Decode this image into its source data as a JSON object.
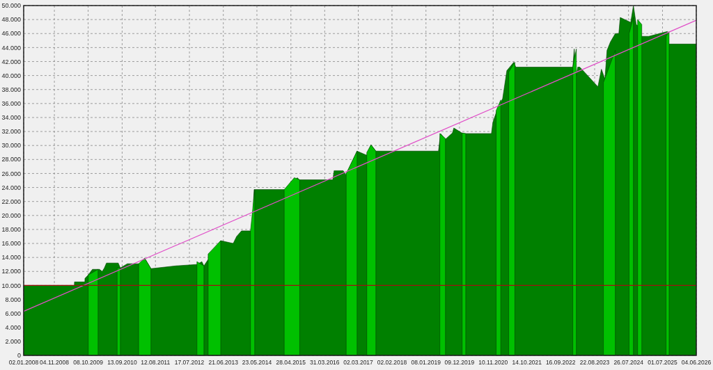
{
  "chart_data": {
    "type": "area",
    "xlim": [
      "2008-01-02",
      "2026-06-04"
    ],
    "xticks": [
      {
        "value": "2008-01-02",
        "label": "02.01.2008"
      },
      {
        "value": "2008-11-04",
        "label": "04.11.2008"
      },
      {
        "value": "2009-10-08",
        "label": "08.10.2009"
      },
      {
        "value": "2010-09-13",
        "label": "13.09.2010"
      },
      {
        "value": "2011-08-12",
        "label": "12.08.2011"
      },
      {
        "value": "2012-07-17",
        "label": "17.07.2012"
      },
      {
        "value": "2013-06-21",
        "label": "21.06.2013"
      },
      {
        "value": "2014-05-23",
        "label": "23.05.2014"
      },
      {
        "value": "2015-04-28",
        "label": "28.04.2015"
      },
      {
        "value": "2016-03-31",
        "label": "31.03.2016"
      },
      {
        "value": "2017-03-02",
        "label": "02.03.2017"
      },
      {
        "value": "2018-02-02",
        "label": "02.02.2018"
      },
      {
        "value": "2019-01-08",
        "label": "08.01.2019"
      },
      {
        "value": "2019-12-09",
        "label": "09.12.2019"
      },
      {
        "value": "2020-11-10",
        "label": "10.11.2020"
      },
      {
        "value": "2021-10-14",
        "label": "14.10.2021"
      },
      {
        "value": "2022-09-16",
        "label": "16.09.2022"
      },
      {
        "value": "2023-08-22",
        "label": "22.08.2023"
      },
      {
        "value": "2024-07-26",
        "label": "26.07.2024"
      },
      {
        "value": "2025-07-01",
        "label": "01.07.2025"
      },
      {
        "value": "2026-06-04",
        "label": "04.06.2026"
      }
    ],
    "ylim": [
      0,
      50000
    ],
    "yticks": [
      0,
      {
        "value": 2000,
        "label": "2.000"
      },
      {
        "value": 4000,
        "label": "4.000"
      },
      {
        "value": 6000,
        "label": "6.000"
      },
      {
        "value": 8000,
        "label": "8.000"
      },
      {
        "value": 10000,
        "label": "10.000"
      },
      {
        "value": 12000,
        "label": "12.000"
      },
      {
        "value": 14000,
        "label": "14.000"
      },
      {
        "value": 16000,
        "label": "16.000"
      },
      {
        "value": 18000,
        "label": "18.000"
      },
      {
        "value": 20000,
        "label": "20.000"
      },
      {
        "value": 22000,
        "label": "22.000"
      },
      {
        "value": 24000,
        "label": "24.000"
      },
      {
        "value": 26000,
        "label": "26.000"
      },
      {
        "value": 28000,
        "label": "28.000"
      },
      {
        "value": 30000,
        "label": "30.000"
      },
      {
        "value": 32000,
        "label": "32.000"
      },
      {
        "value": 34000,
        "label": "34.000"
      },
      {
        "value": 36000,
        "label": "36.000"
      },
      {
        "value": 38000,
        "label": "38.000"
      },
      {
        "value": 40000,
        "label": "40.000"
      },
      {
        "value": 42000,
        "label": "42.000"
      },
      {
        "value": 44000,
        "label": "44.000"
      },
      {
        "value": 46000,
        "label": "46.000"
      },
      {
        "value": 48000,
        "label": "48.000"
      },
      {
        "value": 50000,
        "label": "50.000"
      }
    ],
    "grid": true,
    "series": [
      {
        "color": "#008000",
        "x": [
          "2008-01-02",
          "2009-05-23",
          "2009-05-24",
          "2009-09-05",
          "2009-09-06",
          "2009-10-09",
          "2009-11-20",
          "2010-01-29",
          "2010-02-26",
          "2010-03-19",
          "2010-04-09",
          "2010-08-05",
          "2010-08-26",
          "2010-11-04",
          "2011-03-15",
          "2011-04-26",
          "2011-06-28",
          "2012-03-05",
          "2012-09-30",
          "2012-11-18",
          "2012-12-09",
          "2013-05-26",
          "2013-09-28",
          "2013-11-01",
          "2013-12-20",
          "2014-04-04",
          "2014-04-25",
          "2015-03-05",
          "2015-07-01",
          "2015-07-21",
          "2016-06-20",
          "2016-07-03",
          "2016-10-02",
          "2016-10-30",
          "2017-02-18",
          "2017-05-26",
          "2017-07-07",
          "2017-08-25",
          "2019-05-13",
          "2019-06-03",
          "2019-07-22",
          "2019-09-30",
          "2019-10-14",
          "2020-01-12",
          "2020-10-24",
          "2020-11-07",
          "2020-12-25",
          "2021-02-13",
          "2021-03-27",
          "2021-06-04",
          "2021-06-25",
          "2023-01-16",
          "2023-01-30",
          "2023-02-20",
          "2023-03-06",
          "2023-03-27",
          "2023-09-24",
          "2023-10-29",
          "2023-12-03",
          "2023-12-24",
          "2024-01-27",
          "2024-03-16",
          "2024-04-20",
          "2024-05-04",
          "2024-08-17",
          "2024-09-13",
          "2024-10-11",
          "2024-11-08",
          "2024-11-29",
          "2025-01-10",
          "2025-02-14",
          "2025-08-20",
          "2025-08-27",
          "2025-09-17",
          "2026-06-04"
        ],
        "values": [
          10000,
          10000,
          10500,
          10500,
          11000,
          11500,
          12300,
          12300,
          12000,
          12500,
          13200,
          13200,
          12500,
          13100,
          13100,
          13900,
          12400,
          12800,
          13000,
          13400,
          12800,
          16400,
          16000,
          17000,
          17800,
          17800,
          23700,
          23700,
          25400,
          25100,
          25100,
          26400,
          26400,
          25800,
          29200,
          28600,
          30100,
          29200,
          29200,
          31700,
          30900,
          31800,
          32500,
          31700,
          31700,
          33300,
          35300,
          36700,
          40700,
          41900,
          41200,
          41200,
          43800,
          40000,
          41200,
          41200,
          38400,
          40900,
          39500,
          43600,
          44800,
          46000,
          46000,
          48300,
          47600,
          50000,
          47300,
          47000,
          45600,
          45600,
          45600,
          46300,
          44500,
          44500,
          44500
        ]
      },
      {
        "type": "area",
        "color": "#00c000",
        "x": [
          "2009-10-09",
          "2010-01-15",
          "2010-01-16",
          "2010-07-25",
          "2010-08-26",
          "2010-08-27",
          "2011-02-25",
          "2011-04-26",
          "2011-06-28",
          "2011-06-29",
          "2012-09-30",
          "2012-12-09",
          "2012-12-10",
          "2013-01-20",
          "2013-05-26",
          "2013-05-27",
          "2014-03-20",
          "2014-05-01",
          "2014-05-02",
          "2015-02-20",
          "2015-06-01",
          "2015-07-25",
          "2015-07-26",
          "2016-11-01",
          "2017-02-18",
          "2017-02-19",
          "2017-05-26",
          "2017-07-07",
          "2017-08-25",
          "2017-08-26",
          "2019-05-27",
          "2019-07-22",
          "2019-07-23",
          "2020-01-05",
          "2020-02-10",
          "2020-02-11",
          "2020-12-10",
          "2021-01-25",
          "2021-01-26",
          "2021-04-15",
          "2021-06-15",
          "2021-06-16",
          "2023-01-16",
          "2023-02-20",
          "2023-02-21",
          "2023-11-18",
          "2024-03-16",
          "2024-03-17",
          "2024-08-01",
          "2024-09-13",
          "2024-09-14",
          "2024-10-25",
          "2024-12-06",
          "2024-12-07",
          "2025-08-06",
          "2025-09-05"
        ],
        "values": [
          11500,
          12300,
          null,
          12500,
          12500,
          null,
          13100,
          13900,
          12400,
          null,
          13400,
          12800,
          null,
          14500,
          16400,
          null,
          17800,
          23700,
          null,
          23700,
          25400,
          25100,
          null,
          26000,
          29200,
          null,
          29000,
          30100,
          29200,
          null,
          31700,
          31000,
          null,
          31800,
          31700,
          null,
          35000,
          36500,
          null,
          40500,
          41900,
          null,
          41200,
          43800,
          null,
          39000,
          43600,
          null,
          46000,
          48300,
          null,
          48000,
          47300,
          null,
          45600,
          46300
        ]
      },
      {
        "type": "line",
        "color": "#e050c8",
        "x": [
          "2008-01-02",
          "2026-06-04"
        ],
        "values": [
          6300,
          47900
        ]
      }
    ],
    "ref_lines": [
      {
        "axis": "y",
        "value": 10000,
        "color": "#a01010"
      }
    ]
  }
}
